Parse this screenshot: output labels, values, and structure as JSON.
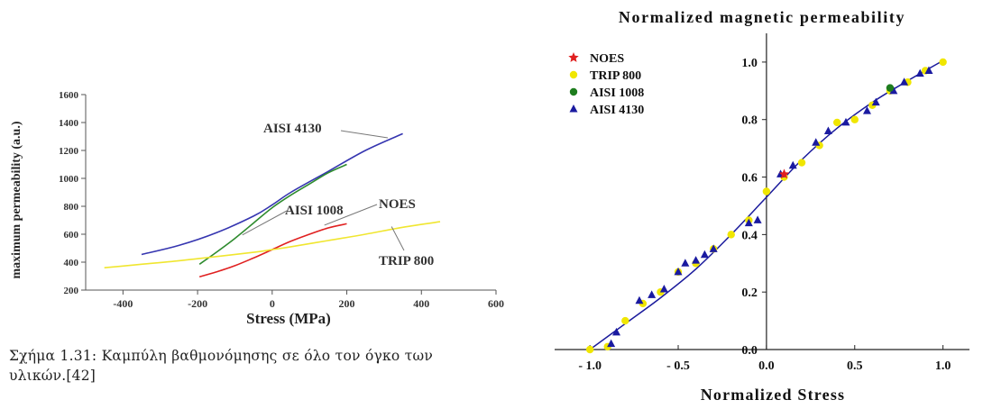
{
  "caption": "Σχήμα 1.31: Καμπύλη βαθμονόμησης σε όλο τον όγκο των υλικών.[42]",
  "chart_data": [
    {
      "type": "line",
      "title": "",
      "xlabel": "Stress (MPa)",
      "ylabel": "maximum permeability (a.u.)",
      "xlim": [
        -500,
        600
      ],
      "ylim": [
        200,
        1600
      ],
      "x_ticks": [
        -400,
        -200,
        0,
        200,
        400,
        600
      ],
      "y_ticks": [
        200,
        400,
        600,
        800,
        1000,
        1200,
        1400,
        1600
      ],
      "grid": false,
      "series": [
        {
          "name": "AISI 4130",
          "color": "#3535b0",
          "x": [
            -350,
            -250,
            -150,
            -50,
            0,
            50,
            150,
            250,
            350
          ],
          "y": [
            455,
            520,
            610,
            730,
            810,
            900,
            1050,
            1200,
            1320
          ]
        },
        {
          "name": "AISI 1008",
          "color": "#2e8b2e",
          "x": [
            -195,
            -150,
            -100,
            -50,
            0,
            50,
            100,
            150,
            200
          ],
          "y": [
            385,
            470,
            570,
            680,
            790,
            880,
            960,
            1040,
            1100
          ]
        },
        {
          "name": "NOES",
          "color": "#e02020",
          "x": [
            -195,
            -150,
            -100,
            -50,
            0,
            50,
            100,
            150,
            200
          ],
          "y": [
            295,
            330,
            375,
            430,
            490,
            550,
            600,
            645,
            675
          ]
        },
        {
          "name": "TRIP 800",
          "color": "#f0e630",
          "x": [
            -450,
            -350,
            -250,
            -150,
            -50,
            0,
            50,
            150,
            250,
            350,
            450
          ],
          "y": [
            360,
            385,
            410,
            440,
            470,
            490,
            510,
            555,
            600,
            650,
            690
          ]
        }
      ],
      "annotations": [
        {
          "text": "AISI 4130",
          "target": [
            310,
            1290
          ]
        },
        {
          "text": "AISI 1008",
          "target": [
            -80,
            595
          ]
        },
        {
          "text": "NOES",
          "target": [
            140,
            665
          ]
        },
        {
          "text": "TRIP 800",
          "target": [
            320,
            655
          ]
        }
      ]
    },
    {
      "type": "scatter",
      "title": "Normalized magnetic permeability",
      "xlabel": "Normalized Stress",
      "ylabel": "",
      "xlim": [
        -1.2,
        1.15
      ],
      "ylim": [
        0.0,
        1.1
      ],
      "x_ticks": [
        -1.0,
        -0.5,
        0.0,
        0.5,
        1.0
      ],
      "x_tick_labels": [
        "- 1.0",
        "- 0.5",
        "0.0",
        "0.5",
        "1.0"
      ],
      "y_ticks": [
        0.0,
        0.2,
        0.4,
        0.6,
        0.8,
        1.0
      ],
      "y_tick_labels": [
        "0.0",
        "0.2",
        "0.4",
        "0.6",
        "0.8",
        "1.0"
      ],
      "grid": false,
      "legend_position": "top-left",
      "fit_line": {
        "color": "#1a1a9c",
        "x": [
          -1.0,
          -0.8,
          -0.6,
          -0.4,
          -0.2,
          0.0,
          0.2,
          0.4,
          0.6,
          0.8,
          1.0
        ],
        "y": [
          0.0,
          0.09,
          0.18,
          0.28,
          0.4,
          0.53,
          0.66,
          0.77,
          0.86,
          0.935,
          1.005
        ]
      },
      "series": [
        {
          "name": "NOES",
          "marker": "star",
          "color": "#e02020",
          "x": [
            0.1
          ],
          "y": [
            0.61
          ]
        },
        {
          "name": "TRIP 800",
          "marker": "circle",
          "color": "#f0e600",
          "x": [
            -1.0,
            -0.9,
            -0.8,
            -0.7,
            -0.6,
            -0.5,
            -0.4,
            -0.3,
            -0.2,
            -0.1,
            0.0,
            0.1,
            0.2,
            0.3,
            0.4,
            0.5,
            0.6,
            0.7,
            0.8,
            0.9,
            1.0
          ],
          "y": [
            0.0,
            0.01,
            0.1,
            0.16,
            0.2,
            0.27,
            0.3,
            0.35,
            0.4,
            0.45,
            0.55,
            0.6,
            0.65,
            0.71,
            0.79,
            0.8,
            0.85,
            0.9,
            0.93,
            0.97,
            1.0
          ]
        },
        {
          "name": "AISI 1008",
          "marker": "circle",
          "color": "#1e7d1e",
          "x": [
            0.7
          ],
          "y": [
            0.91
          ]
        },
        {
          "name": "AISI 4130",
          "marker": "triangle",
          "color": "#1a1aa0",
          "x": [
            -0.88,
            -0.85,
            -0.72,
            -0.65,
            -0.58,
            -0.5,
            -0.46,
            -0.4,
            -0.35,
            -0.3,
            -0.1,
            -0.05,
            0.08,
            0.15,
            0.28,
            0.35,
            0.45,
            0.57,
            0.62,
            0.72,
            0.78,
            0.87,
            0.92
          ],
          "y": [
            0.02,
            0.06,
            0.17,
            0.19,
            0.21,
            0.27,
            0.3,
            0.31,
            0.33,
            0.35,
            0.44,
            0.45,
            0.61,
            0.64,
            0.72,
            0.76,
            0.79,
            0.83,
            0.86,
            0.9,
            0.93,
            0.96,
            0.97
          ]
        }
      ]
    }
  ]
}
